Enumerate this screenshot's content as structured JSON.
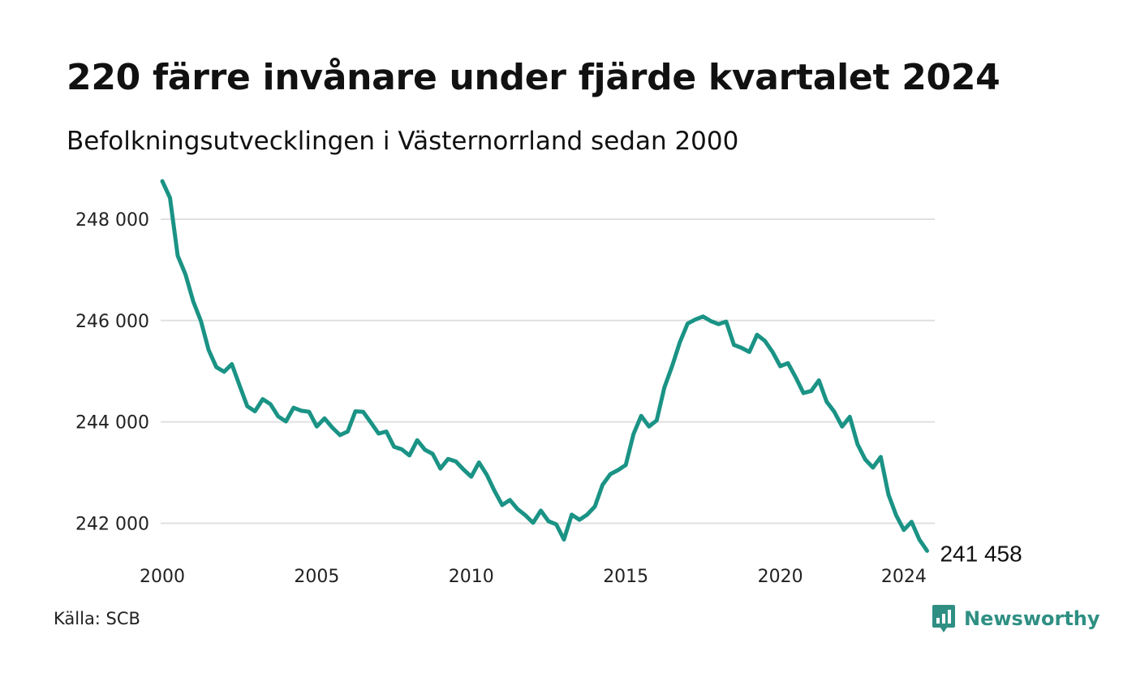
{
  "title": "220 färre invånare under fjärde kvartalet 2024",
  "subtitle": "Befolkningsutvecklingen i Västernorrland sedan 2000",
  "source": "Källa: SCB",
  "brand": {
    "name": "Newsworthy",
    "icon": "newsworthy-logo-icon",
    "color": "#2f8f83"
  },
  "chart_data": {
    "type": "line",
    "line_color": "#1a9385",
    "grid": true,
    "grid_axis": "y",
    "ylim": [
      241400,
      248800
    ],
    "xlim": [
      2000,
      2025
    ],
    "yticks": [
      242000,
      244000,
      246000,
      248000
    ],
    "ytick_labels": [
      "242 000",
      "244 000",
      "246 000",
      "248 000"
    ],
    "xticks": [
      2000,
      2005,
      2010,
      2015,
      2020,
      2024
    ],
    "xtick_labels": [
      "2000",
      "2005",
      "2010",
      "2015",
      "2020",
      "2024"
    ],
    "end_label": "241 458",
    "series": [
      {
        "x": [
          "2000Q1",
          "2000Q2",
          "2000Q3",
          "2000Q4",
          "2001Q1",
          "2001Q2",
          "2001Q3",
          "2001Q4",
          "2002Q1",
          "2002Q2",
          "2002Q3",
          "2002Q4",
          "2003Q1",
          "2003Q2",
          "2003Q3",
          "2003Q4",
          "2004Q1",
          "2004Q2",
          "2004Q3",
          "2004Q4",
          "2005Q1",
          "2005Q2",
          "2005Q3",
          "2005Q4",
          "2006Q1",
          "2006Q2",
          "2006Q3",
          "2006Q4",
          "2007Q1",
          "2007Q2",
          "2007Q3",
          "2007Q4",
          "2008Q1",
          "2008Q2",
          "2008Q3",
          "2008Q4",
          "2009Q1",
          "2009Q2",
          "2009Q3",
          "2009Q4",
          "2010Q1",
          "2010Q2",
          "2010Q3",
          "2010Q4",
          "2011Q1",
          "2011Q2",
          "2011Q3",
          "2011Q4",
          "2012Q1",
          "2012Q2",
          "2012Q3",
          "2012Q4",
          "2013Q1",
          "2013Q2",
          "2013Q3",
          "2013Q4",
          "2014Q1",
          "2014Q2",
          "2014Q3",
          "2014Q4",
          "2015Q1",
          "2015Q2",
          "2015Q3",
          "2015Q4",
          "2016Q1",
          "2016Q2",
          "2016Q3",
          "2016Q4",
          "2017Q1",
          "2017Q2",
          "2017Q3",
          "2017Q4",
          "2018Q1",
          "2018Q2",
          "2018Q3",
          "2018Q4",
          "2019Q1",
          "2019Q2",
          "2019Q3",
          "2019Q4",
          "2020Q1",
          "2020Q2",
          "2020Q3",
          "2020Q4",
          "2021Q1",
          "2021Q2",
          "2021Q3",
          "2021Q4",
          "2022Q1",
          "2022Q2",
          "2022Q3",
          "2022Q4",
          "2023Q1",
          "2023Q2",
          "2023Q3",
          "2023Q4",
          "2024Q1",
          "2024Q2",
          "2024Q3",
          "2024Q4"
        ],
        "values": [
          248750,
          248420,
          247280,
          246910,
          246380,
          245990,
          245420,
          245080,
          244990,
          245140,
          244720,
          244310,
          244210,
          244450,
          244350,
          244110,
          244010,
          244280,
          244220,
          244200,
          243910,
          244070,
          243890,
          243740,
          243810,
          244210,
          244200,
          243990,
          243770,
          243810,
          243510,
          243460,
          243340,
          243640,
          243450,
          243370,
          243080,
          243270,
          243220,
          243060,
          242920,
          243200,
          242960,
          242640,
          242360,
          242460,
          242280,
          242160,
          242010,
          242250,
          242040,
          241980,
          241680,
          242170,
          242070,
          242170,
          242330,
          242760,
          242970,
          243050,
          243150,
          243760,
          244120,
          243910,
          244030,
          244680,
          245100,
          245570,
          245940,
          246020,
          246080,
          245990,
          245930,
          245980,
          245520,
          245460,
          245380,
          245720,
          245600,
          245380,
          245100,
          245160,
          244880,
          244570,
          244610,
          244820,
          244400,
          244200,
          243910,
          244100,
          243560,
          243260,
          243100,
          243310,
          242570,
          242160,
          241870,
          242030,
          241680,
          241458
        ]
      }
    ]
  }
}
